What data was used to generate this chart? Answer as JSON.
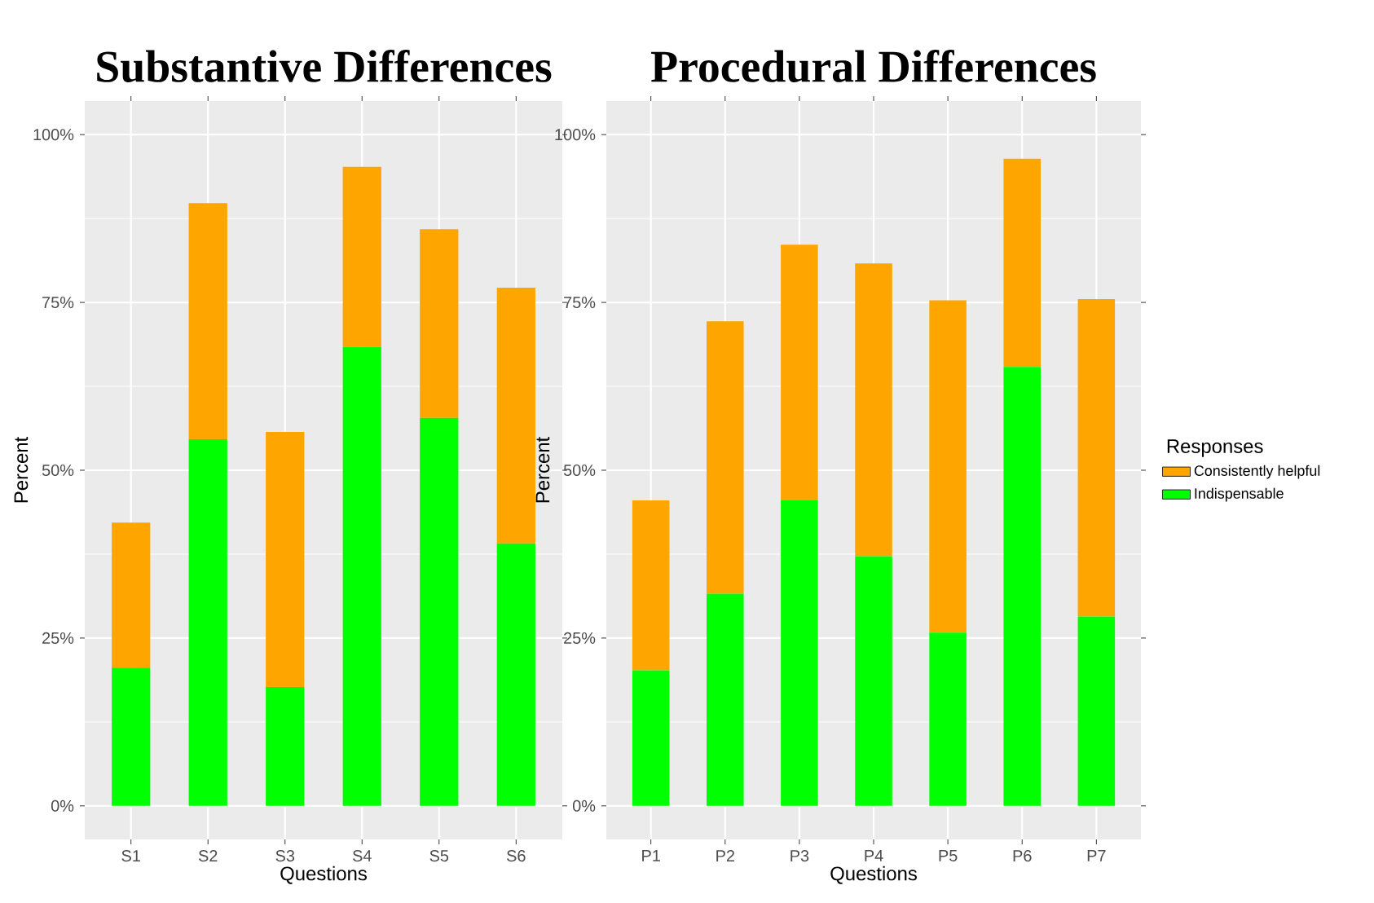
{
  "chart_data": [
    {
      "type": "bar",
      "title": "Substantive Differences",
      "xlabel": "Questions",
      "ylabel": "Percent",
      "categories": [
        "S1",
        "S2",
        "S3",
        "S4",
        "S5",
        "S6"
      ],
      "stacked": true,
      "grid": true,
      "ylim": [
        -5,
        105
      ],
      "yticks": [
        {
          "value": 0,
          "label": "0%"
        },
        {
          "value": 25,
          "label": "25%"
        },
        {
          "value": 50,
          "label": "50%"
        },
        {
          "value": 75,
          "label": "75%"
        },
        {
          "value": 100,
          "label": "100%"
        }
      ],
      "series": [
        {
          "color": "#00ff00",
          "values": [
            20.6,
            54.6,
            17.7,
            68.4,
            57.8,
            39.1
          ]
        },
        {
          "color": "#ffa500",
          "values": [
            21.6,
            35.2,
            38.0,
            26.8,
            28.1,
            38.1
          ]
        }
      ]
    },
    {
      "type": "bar",
      "title": "Procedural Differences",
      "xlabel": "Questions",
      "ylabel": "Percent",
      "categories": [
        "P1",
        "P2",
        "P3",
        "P4",
        "P5",
        "P6",
        "P7"
      ],
      "stacked": true,
      "grid": true,
      "legend": "right",
      "legend_title": "Responses",
      "ylim": [
        -5,
        105
      ],
      "yticks": [
        {
          "value": 0,
          "label": "0%"
        },
        {
          "value": 25,
          "label": "25%"
        },
        {
          "value": 50,
          "label": "50%"
        },
        {
          "value": 75,
          "label": "75%"
        },
        {
          "value": 100,
          "label": "100%"
        }
      ],
      "series": [
        {
          "name": "Indispensable",
          "color": "#00ff00",
          "values": [
            20.2,
            31.6,
            45.5,
            37.2,
            25.8,
            65.4,
            28.2
          ]
        },
        {
          "name": "Consistently helpful",
          "color": "#ffa500",
          "values": [
            25.3,
            40.6,
            38.1,
            43.6,
            49.5,
            31.0,
            47.3
          ]
        }
      ]
    }
  ]
}
